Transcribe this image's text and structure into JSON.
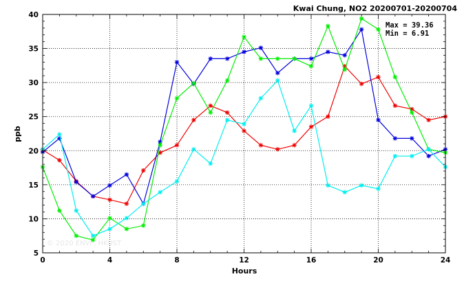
{
  "chart_data": {
    "type": "line",
    "title": "Kwai Chung, NO2 20200701-20200704",
    "xlabel": "Hours",
    "ylabel": "ppb",
    "xlim": [
      0,
      24
    ],
    "ylim": [
      5,
      40
    ],
    "xticks": [
      0,
      4,
      8,
      12,
      16,
      20,
      24
    ],
    "yticks": [
      5,
      10,
      15,
      20,
      25,
      30,
      35,
      40
    ],
    "grid": true,
    "marker": "asterisk",
    "stats": {
      "max": "Max = 39.36",
      "min": "Min =  6.91"
    },
    "watermark": "© 2020 ENVF, HKUST",
    "x": [
      0,
      1,
      2,
      3,
      4,
      5,
      6,
      7,
      8,
      9,
      10,
      11,
      12,
      13,
      14,
      15,
      16,
      17,
      18,
      19,
      20,
      21,
      22,
      23,
      24
    ],
    "series": [
      {
        "color": "#ee0000",
        "values": [
          20.1,
          18.6,
          15.5,
          13.3,
          12.8,
          12.2,
          17.1,
          19.7,
          20.8,
          24.5,
          26.6,
          25.6,
          22.9,
          20.8,
          20.2,
          20.8,
          23.5,
          25.0,
          32.4,
          29.8,
          30.8,
          26.6,
          26.1,
          24.5,
          25.0
        ]
      },
      {
        "color": "#0000dd",
        "values": [
          19.8,
          21.8,
          15.4,
          13.3,
          14.9,
          16.5,
          12.2,
          21.3,
          33.0,
          29.8,
          33.5,
          33.5,
          34.5,
          35.1,
          31.4,
          33.5,
          33.5,
          34.5,
          34.0,
          37.8,
          24.5,
          21.8,
          21.8,
          19.2,
          20.2
        ]
      },
      {
        "color": "#00ee00",
        "values": [
          17.6,
          11.2,
          7.5,
          6.9,
          10.1,
          8.5,
          9.0,
          20.8,
          27.7,
          29.9,
          25.6,
          30.3,
          36.7,
          33.5,
          33.5,
          33.5,
          32.4,
          38.3,
          31.9,
          39.4,
          37.8,
          30.8,
          25.6,
          20.2,
          19.7
        ]
      },
      {
        "color": "#00eeee",
        "values": [
          20.2,
          22.4,
          11.2,
          7.5,
          8.5,
          10.1,
          12.2,
          13.9,
          15.5,
          20.2,
          18.1,
          24.5,
          23.9,
          27.7,
          30.3,
          22.9,
          26.6,
          14.9,
          13.9,
          14.9,
          14.4,
          19.2,
          19.2,
          20.2,
          17.6
        ]
      }
    ]
  }
}
